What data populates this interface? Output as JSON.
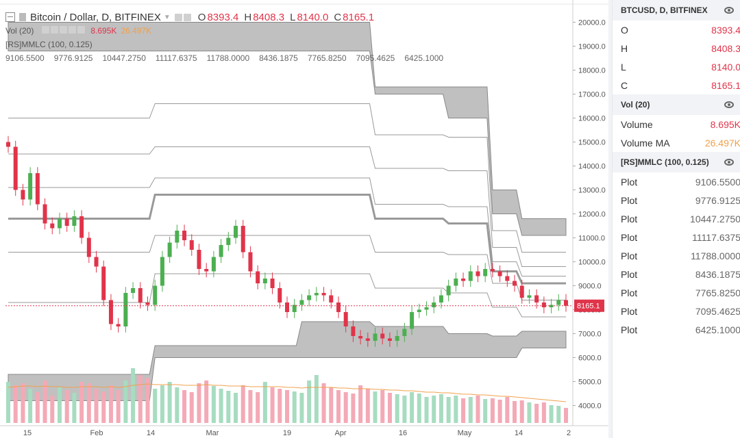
{
  "header": {
    "title": "Bitcoin / Dollar, D, BITFINEX",
    "o_label": "O",
    "o_value": "8393.4",
    "h_label": "H",
    "h_value": "8408.3",
    "l_label": "L",
    "l_value": "8140.0",
    "c_label": "C",
    "c_value": "8165.1"
  },
  "vol_indicator": {
    "name": "Vol (20)",
    "volume": "8.695K",
    "ma": "26.497K"
  },
  "mmlc_indicator": {
    "name": "[RS]MMLC (100, 0.125)",
    "values": [
      "9106.5500",
      "9776.9125",
      "10447.2750",
      "11117.6375",
      "11788.0000",
      "8436.1875",
      "7765.8250",
      "7095.4625",
      "6425.1000"
    ]
  },
  "colors": {
    "up": "#4caf50",
    "down": "#e0344a",
    "band": "#9e9e9e",
    "vol_up": "#a7dcc0",
    "vol_down": "#f4a9b6",
    "ma": "#f0a04b"
  },
  "chart_data": {
    "type": "candlestick",
    "y_axis": {
      "range": [
        3500,
        20500
      ],
      "ticks": [
        "20000.0",
        "19000.0",
        "18000.0",
        "17000.0",
        "16000.0",
        "15000.0",
        "14000.0",
        "13000.0",
        "12000.0",
        "11000.0",
        "10000.0",
        "9000.0",
        "8000.0",
        "7000.0",
        "6000.0",
        "5000.0",
        "4000.0"
      ]
    },
    "x_axis": {
      "labels": [
        "15",
        "Feb",
        "14",
        "Mar",
        "19",
        "Apr",
        "16",
        "May",
        "14",
        "2"
      ]
    },
    "last_price": "8165.1",
    "price_path": [
      14800,
      13000,
      12600,
      13700,
      12400,
      11600,
      11400,
      11800,
      11500,
      11900,
      11000,
      10200,
      9800,
      8400,
      7400,
      7300,
      8700,
      8900,
      8300,
      8200,
      9000,
      10200,
      10800,
      11300,
      10900,
      10500,
      9700,
      9600,
      10200,
      10700,
      11000,
      11500,
      10400,
      9600,
      9100,
      9300,
      8900,
      8300,
      7900,
      8200,
      8400,
      8600,
      8700,
      8600,
      8300,
      7900,
      7300,
      6900,
      6800,
      6700,
      7000,
      6800,
      6700,
      6900,
      7200,
      7900,
      8000,
      8100,
      8300,
      8600,
      9000,
      9300,
      9200,
      9600,
      9400,
      9700,
      9600,
      9400,
      9200,
      9000,
      8500,
      8600,
      8300,
      8100,
      8200,
      8400,
      8165
    ],
    "mmlc_bands": {
      "dates_index": [
        0,
        20,
        40,
        50,
        60,
        66,
        70,
        76
      ],
      "outer_top_upper": [
        20000,
        20000,
        20000,
        17300,
        17300,
        13000,
        11800,
        11800
      ],
      "outer_top_lower": [
        18800,
        18800,
        18800,
        17000,
        16000,
        12000,
        11100,
        11100
      ],
      "outer_bot_upper": [
        5300,
        6500,
        7500,
        7300,
        7000,
        6900,
        7100,
        7100
      ],
      "outer_bot_lower": [
        4200,
        6000,
        6000,
        6000,
        6000,
        6000,
        6400,
        6400
      ],
      "mid_line": [
        11800,
        12800,
        12800,
        11800,
        11600,
        9600,
        9100,
        9100
      ],
      "levels": [
        [
          16000,
          16600,
          16600,
          15300,
          15200,
          11300,
          10400,
          10400
        ],
        [
          14500,
          14800,
          14800,
          13900,
          13800,
          10600,
          9800,
          9800
        ],
        [
          13100,
          13500,
          13500,
          12400,
          12300,
          10000,
          9400,
          9400
        ],
        [
          10400,
          11100,
          11100,
          10400,
          10300,
          9100,
          8400,
          8400
        ],
        [
          8300,
          9500,
          9500,
          8900,
          8700,
          8100,
          7700,
          7700
        ]
      ]
    },
    "volume": {
      "values": [
        60,
        55,
        58,
        50,
        45,
        62,
        40,
        52,
        48,
        44,
        60,
        58,
        50,
        46,
        55,
        48,
        62,
        80,
        70,
        66,
        50,
        55,
        60,
        52,
        48,
        45,
        58,
        62,
        54,
        50,
        47,
        44,
        55,
        48,
        45,
        60,
        52,
        50,
        48,
        46,
        44,
        62,
        70,
        58,
        52,
        48,
        45,
        43,
        55,
        50,
        46,
        48,
        44,
        42,
        40,
        45,
        43,
        38,
        40,
        42,
        38,
        40,
        36,
        38,
        40,
        35,
        36,
        34,
        38,
        32,
        33,
        30,
        28,
        30,
        26,
        25,
        22
      ],
      "ma": [
        52,
        53,
        54,
        54,
        53,
        54,
        53,
        53,
        52,
        52,
        53,
        53,
        53,
        52,
        53,
        52,
        53,
        55,
        56,
        57,
        56,
        56,
        56,
        56,
        55,
        55,
        55,
        56,
        55,
        55,
        54,
        54,
        54,
        53,
        53,
        53,
        53,
        53,
        52,
        52,
        51,
        52,
        52,
        52,
        52,
        51,
        51,
        50,
        50,
        50,
        49,
        49,
        48,
        48,
        47,
        47,
        46,
        45,
        45,
        44,
        44,
        43,
        42,
        42,
        41,
        41,
        40,
        39,
        39,
        38,
        37,
        36,
        35,
        34,
        33,
        32,
        31
      ]
    }
  }
}
